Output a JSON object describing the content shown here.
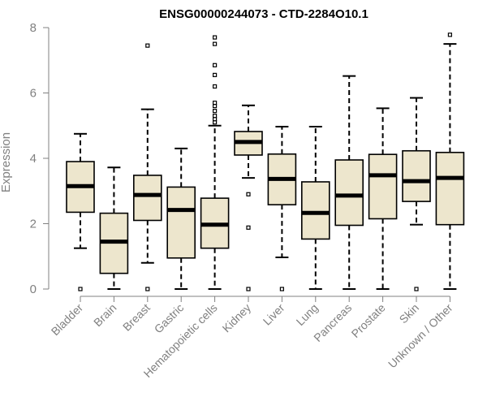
{
  "chart_data": {
    "type": "box",
    "title": "ENSG00000244073 - CTD-2284O10.1",
    "xlabel": "",
    "ylabel": "Expression",
    "ylim": [
      0,
      8
    ],
    "yticks": [
      0,
      2,
      4,
      6,
      8
    ],
    "grid": false,
    "categories": [
      "Bladder",
      "Brain",
      "Breast",
      "Gastric",
      "Hematopoietic cells",
      "Kidney",
      "Liver",
      "Lung",
      "Pancreas",
      "Prostate",
      "Skin",
      "Unknown / Other"
    ],
    "boxes": [
      {
        "category": "Bladder",
        "whisker_low": 1.25,
        "q1": 2.35,
        "median": 3.15,
        "q3": 3.9,
        "whisker_high": 4.75,
        "outliers": [
          0.0
        ]
      },
      {
        "category": "Brain",
        "whisker_low": 0.0,
        "q1": 0.48,
        "median": 1.45,
        "q3": 2.32,
        "whisker_high": 3.72,
        "outliers": []
      },
      {
        "category": "Breast",
        "whisker_low": 0.8,
        "q1": 2.1,
        "median": 2.88,
        "q3": 3.48,
        "whisker_high": 5.5,
        "outliers": [
          0.0,
          7.45
        ]
      },
      {
        "category": "Gastric",
        "whisker_low": 0.0,
        "q1": 0.95,
        "median": 2.42,
        "q3": 3.12,
        "whisker_high": 4.3,
        "outliers": []
      },
      {
        "category": "Hematopoietic cells",
        "whisker_low": 0.0,
        "q1": 1.25,
        "median": 1.97,
        "q3": 2.78,
        "whisker_high": 5.0,
        "outliers": [
          5.1,
          5.2,
          5.3,
          5.45,
          5.6,
          5.7,
          6.2,
          6.55,
          6.85,
          7.5,
          7.7
        ]
      },
      {
        "category": "Kidney",
        "whisker_low": 3.4,
        "q1": 4.1,
        "median": 4.5,
        "q3": 4.82,
        "whisker_high": 5.62,
        "outliers": [
          0.0,
          1.88,
          2.9
        ]
      },
      {
        "category": "Liver",
        "whisker_low": 0.97,
        "q1": 2.58,
        "median": 3.37,
        "q3": 4.13,
        "whisker_high": 4.97,
        "outliers": [
          0.0
        ]
      },
      {
        "category": "Lung",
        "whisker_low": 0.0,
        "q1": 1.53,
        "median": 2.33,
        "q3": 3.28,
        "whisker_high": 4.97,
        "outliers": []
      },
      {
        "category": "Pancreas",
        "whisker_low": 0.0,
        "q1": 1.95,
        "median": 2.86,
        "q3": 3.95,
        "whisker_high": 6.52,
        "outliers": []
      },
      {
        "category": "Prostate",
        "whisker_low": 0.0,
        "q1": 2.15,
        "median": 3.48,
        "q3": 4.12,
        "whisker_high": 5.53,
        "outliers": []
      },
      {
        "category": "Skin",
        "whisker_low": 1.97,
        "q1": 2.68,
        "median": 3.3,
        "q3": 4.23,
        "whisker_high": 5.85,
        "outliers": [
          0.0
        ]
      },
      {
        "category": "Unknown / Other",
        "whisker_low": 0.0,
        "q1": 1.97,
        "median": 3.4,
        "q3": 4.18,
        "whisker_high": 7.5,
        "outliers": [
          7.78
        ]
      }
    ],
    "colors": {
      "box_fill": "#ede6cd",
      "box_stroke": "#000000",
      "axis": "#808080",
      "tick_label": "#808080",
      "title": "#000000"
    }
  }
}
